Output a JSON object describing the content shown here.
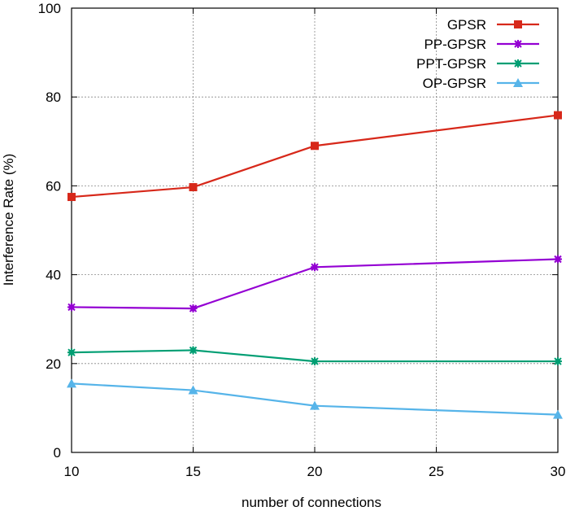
{
  "chart_data": {
    "type": "line",
    "xlabel": "number of connections",
    "ylabel": "Interference Rate (%)",
    "xlim": [
      10,
      30
    ],
    "ylim": [
      0,
      100
    ],
    "xticks": [
      10,
      15,
      20,
      25,
      30
    ],
    "yticks": [
      0,
      20,
      40,
      60,
      80,
      100
    ],
    "grid": true,
    "legend_position": "top-right",
    "x": [
      10,
      15,
      20,
      30
    ],
    "series": [
      {
        "name": "GPSR",
        "values": [
          57.5,
          59.7,
          69.0,
          75.9
        ],
        "color": "#d7281a",
        "marker": "square"
      },
      {
        "name": "PP-GPSR",
        "values": [
          32.7,
          32.4,
          41.7,
          43.5
        ],
        "color": "#9400d3",
        "marker": "star"
      },
      {
        "name": "PPT-GPSR",
        "values": [
          22.5,
          23.0,
          20.5,
          20.5
        ],
        "color": "#009e73",
        "marker": "star"
      },
      {
        "name": "OP-GPSR",
        "values": [
          15.5,
          14.0,
          10.5,
          8.5
        ],
        "color": "#56b4e9",
        "marker": "triangle"
      }
    ]
  }
}
